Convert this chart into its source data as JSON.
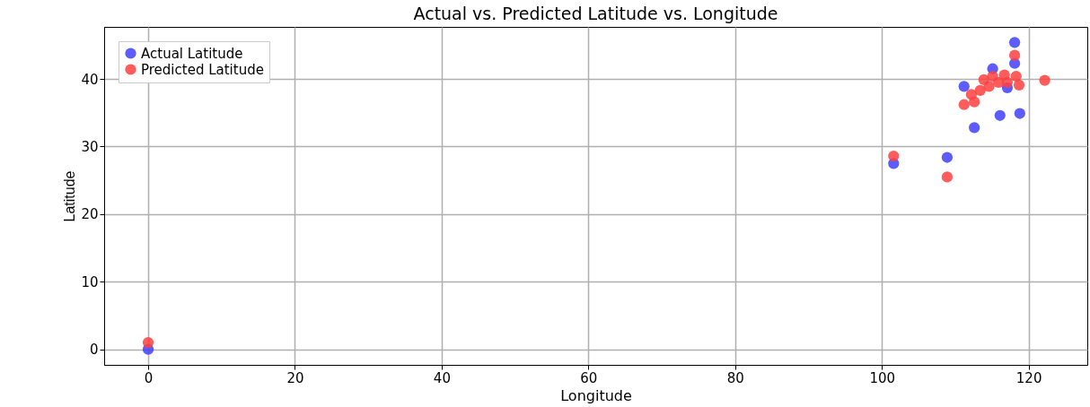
{
  "chart_data": {
    "type": "scatter",
    "title": "Actual vs. Predicted Latitude vs. Longitude",
    "xlabel": "Longitude",
    "ylabel": "Latitude",
    "xlim": [
      -6,
      128
    ],
    "ylim": [
      -2.3,
      47.7
    ],
    "xticks": [
      0,
      20,
      40,
      60,
      80,
      100,
      120
    ],
    "yticks": [
      0,
      10,
      20,
      30,
      40
    ],
    "grid": true,
    "legend": "top left",
    "marker": "circle",
    "series": [
      {
        "name": "Actual Latitude",
        "color": "#4040ff",
        "x": [
          0,
          101.6,
          108.9,
          112.6,
          116.1,
          118.8,
          111.2,
          117.1,
          115.1,
          118.1,
          118.1
        ],
        "values": [
          0,
          27.5,
          28.4,
          32.8,
          34.6,
          34.9,
          38.9,
          38.7,
          41.5,
          42.3,
          45.4
        ]
      },
      {
        "name": "Predicted Latitude",
        "color": "#ff4040",
        "x": [
          0,
          101.6,
          108.9,
          111.2,
          112.6,
          112.2,
          113.4,
          114.6,
          113.9,
          115.1,
          115.9,
          116.7,
          117.1,
          118.3,
          118.7,
          118.1,
          122.2
        ],
        "values": [
          1,
          28.6,
          25.5,
          36.2,
          36.6,
          37.7,
          38.3,
          38.9,
          39.9,
          40.4,
          39.5,
          40.6,
          39.5,
          40.4,
          39.1,
          43.5,
          39.8
        ]
      }
    ]
  }
}
